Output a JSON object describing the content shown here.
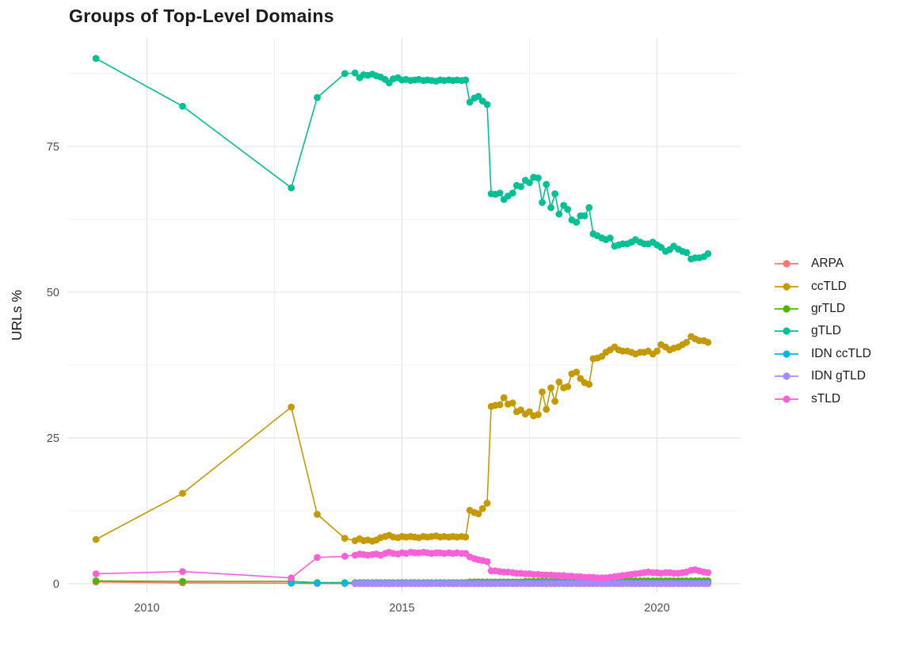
{
  "page": {
    "title": "Groups of Top-Level Domains"
  },
  "chart_data": {
    "type": "line",
    "title": "Groups of Top-Level Domains",
    "xlabel": "",
    "ylabel": "URLs %",
    "legend_position": "right",
    "grid": true,
    "xlim": [
      2008.44,
      2021.64
    ],
    "ylim": [
      -1.49,
      93.6
    ],
    "x_ticks": [
      2010,
      2015,
      2020
    ],
    "x_tick_labels": [
      "2010",
      "2015",
      "2020"
    ],
    "x_minor_ticks": [
      2012.5,
      2017.5
    ],
    "y_ticks": [
      0,
      25,
      50,
      75
    ],
    "y_tick_labels": [
      "0",
      "25",
      "50",
      "75"
    ],
    "y_minor_ticks": [
      12.5,
      37.5,
      62.5,
      87.5
    ],
    "x_dense": [
      2014.08,
      2014.17,
      2014.25,
      2014.33,
      2014.42,
      2014.5,
      2014.58,
      2014.67,
      2014.75,
      2014.83,
      2014.92,
      2015.0,
      2015.08,
      2015.17,
      2015.25,
      2015.33,
      2015.42,
      2015.5,
      2015.58,
      2015.67,
      2015.75,
      2015.83,
      2015.92,
      2016.0,
      2016.08,
      2016.17,
      2016.25,
      2016.33,
      2016.42,
      2016.5,
      2016.58,
      2016.67,
      2016.75,
      2016.83,
      2016.92,
      2017.0,
      2017.08,
      2017.17,
      2017.25,
      2017.33,
      2017.42,
      2017.5,
      2017.58,
      2017.67,
      2017.75,
      2017.83,
      2017.92,
      2018.0,
      2018.08,
      2018.17,
      2018.25,
      2018.33,
      2018.42,
      2018.5,
      2018.58,
      2018.67,
      2018.75,
      2018.83,
      2018.92,
      2019.0,
      2019.08,
      2019.17,
      2019.25,
      2019.33,
      2019.42,
      2019.5,
      2019.58,
      2019.67,
      2019.75,
      2019.83,
      2019.92,
      2020.0,
      2020.08,
      2020.17,
      2020.25,
      2020.33,
      2020.42,
      2020.5,
      2020.58,
      2020.67,
      2020.75,
      2020.83,
      2020.92,
      2021.0
    ],
    "series": [
      {
        "name": "ARPA",
        "color": "#F8766D",
        "sparse_points": [
          [
            2009.0,
            0.3
          ],
          [
            2010.7,
            0.15
          ],
          [
            2012.83,
            0.1
          ],
          [
            2013.34,
            0.05
          ],
          [
            2013.88,
            0.03
          ]
        ],
        "dense_y": 0.02
      },
      {
        "name": "ccTLD",
        "color": "#C49A00",
        "sparse_points": [
          [
            2009.0,
            7.6
          ],
          [
            2010.7,
            15.5
          ],
          [
            2012.83,
            30.3
          ],
          [
            2013.34,
            11.9
          ],
          [
            2013.88,
            7.8
          ]
        ],
        "dense_y": [
          7.4,
          7.7,
          7.4,
          7.5,
          7.3,
          7.5,
          7.9,
          8.1,
          8.3,
          8.0,
          7.9,
          8.1,
          8.0,
          8.1,
          8.0,
          7.9,
          8.1,
          8.0,
          8.1,
          8.2,
          8.0,
          8.1,
          8.0,
          8.1,
          8.0,
          8.1,
          8.0,
          12.6,
          12.2,
          12.0,
          12.9,
          13.8,
          30.4,
          30.6,
          30.7,
          31.9,
          30.8,
          31.0,
          29.5,
          29.8,
          29.1,
          29.5,
          28.8,
          29.0,
          32.9,
          29.9,
          33.6,
          31.3,
          34.6,
          33.6,
          33.8,
          36.0,
          36.3,
          35.2,
          34.5,
          34.2,
          38.6,
          38.7,
          39.0,
          39.7,
          40.1,
          40.6,
          40.1,
          39.9,
          39.9,
          39.7,
          39.4,
          39.7,
          39.7,
          39.9,
          39.4,
          39.9,
          41.0,
          40.6,
          40.1,
          40.4,
          40.6,
          41.0,
          41.4,
          42.4,
          42.0,
          41.7,
          41.7,
          41.4
        ]
      },
      {
        "name": "grTLD",
        "color": "#53B400",
        "sparse_points": [
          [
            2009.0,
            0.5
          ],
          [
            2010.7,
            0.4
          ],
          [
            2012.83,
            0.4
          ],
          [
            2013.34,
            0.2
          ],
          [
            2013.88,
            0.2
          ]
        ],
        "dense_y": [
          0.2,
          0.2,
          0.2,
          0.2,
          0.2,
          0.2,
          0.2,
          0.2,
          0.2,
          0.2,
          0.2,
          0.2,
          0.2,
          0.2,
          0.2,
          0.2,
          0.2,
          0.2,
          0.2,
          0.2,
          0.2,
          0.2,
          0.2,
          0.2,
          0.2,
          0.2,
          0.2,
          0.3,
          0.3,
          0.3,
          0.3,
          0.3,
          0.3,
          0.3,
          0.3,
          0.3,
          0.3,
          0.3,
          0.3,
          0.3,
          0.4,
          0.4,
          0.4,
          0.4,
          0.4,
          0.4,
          0.4,
          0.4,
          0.4,
          0.4,
          0.4,
          0.4,
          0.4,
          0.5,
          0.5,
          0.5,
          0.5,
          0.5,
          0.5,
          0.5,
          0.5,
          0.5,
          0.5,
          0.5,
          0.5,
          0.5,
          0.5,
          0.5,
          0.5,
          0.5,
          0.5,
          0.5,
          0.5,
          0.5,
          0.5,
          0.5,
          0.5,
          0.5,
          0.5,
          0.5,
          0.5,
          0.5,
          0.5,
          0.5
        ]
      },
      {
        "name": "gTLD",
        "color": "#00C094",
        "sparse_points": [
          [
            2009.0,
            90.1
          ],
          [
            2010.7,
            81.9
          ],
          [
            2012.83,
            67.9
          ],
          [
            2013.34,
            83.4
          ],
          [
            2013.88,
            87.5
          ]
        ],
        "dense_y": [
          87.6,
          86.8,
          87.3,
          87.2,
          87.4,
          87.1,
          86.9,
          86.5,
          85.9,
          86.6,
          86.8,
          86.4,
          86.5,
          86.3,
          86.4,
          86.5,
          86.3,
          86.4,
          86.3,
          86.2,
          86.4,
          86.3,
          86.4,
          86.3,
          86.4,
          86.3,
          86.4,
          82.6,
          83.3,
          83.6,
          82.8,
          82.2,
          66.9,
          66.8,
          67.0,
          65.9,
          66.5,
          67.0,
          68.3,
          68.1,
          69.2,
          68.8,
          69.7,
          69.6,
          65.4,
          68.5,
          64.5,
          66.9,
          63.4,
          64.9,
          64.2,
          62.4,
          62.0,
          63.1,
          63.1,
          64.5,
          60.0,
          59.7,
          59.3,
          59.0,
          59.3,
          57.9,
          58.1,
          58.3,
          58.3,
          58.6,
          59.0,
          58.6,
          58.3,
          58.3,
          58.6,
          58.1,
          57.7,
          57.0,
          57.3,
          57.9,
          57.4,
          57.0,
          56.8,
          55.7,
          55.9,
          55.9,
          56.1,
          56.6
        ]
      },
      {
        "name": "IDN ccTLD",
        "color": "#00B6EB",
        "sparse_points": [
          [
            2012.83,
            0.1
          ],
          [
            2013.34,
            0.1
          ],
          [
            2013.88,
            0.1
          ]
        ],
        "dense_y": 0.1
      },
      {
        "name": "IDN gTLD",
        "color": "#A58AFF",
        "sparse_points": [],
        "dense_y": 0.05
      },
      {
        "name": "sTLD",
        "color": "#FB61D7",
        "sparse_points": [
          [
            2009.0,
            1.7
          ],
          [
            2010.7,
            2.1
          ],
          [
            2012.83,
            1.0
          ],
          [
            2013.34,
            4.5
          ],
          [
            2013.88,
            4.7
          ]
        ],
        "dense_y": [
          4.9,
          5.1,
          5.0,
          4.9,
          5.0,
          5.1,
          4.9,
          5.2,
          5.4,
          5.2,
          5.1,
          5.3,
          5.2,
          5.4,
          5.3,
          5.3,
          5.4,
          5.3,
          5.2,
          5.3,
          5.3,
          5.2,
          5.3,
          5.2,
          5.3,
          5.2,
          5.2,
          4.6,
          4.3,
          4.1,
          4.0,
          3.8,
          2.2,
          2.2,
          2.1,
          2.0,
          2.0,
          1.9,
          1.8,
          1.8,
          1.7,
          1.7,
          1.6,
          1.6,
          1.5,
          1.5,
          1.5,
          1.4,
          1.4,
          1.4,
          1.3,
          1.3,
          1.2,
          1.2,
          1.1,
          1.1,
          1.1,
          1.0,
          1.0,
          1.0,
          1.1,
          1.2,
          1.3,
          1.4,
          1.5,
          1.6,
          1.7,
          1.8,
          1.9,
          2.0,
          1.9,
          1.9,
          1.8,
          1.9,
          1.9,
          1.8,
          1.8,
          1.9,
          2.0,
          2.3,
          2.4,
          2.2,
          2.0,
          1.9
        ]
      }
    ],
    "style": {
      "grid_major_color": "#e4e4e4",
      "grid_minor_color": "#efefef",
      "tick_label_color": "#4d4d4d",
      "axis_title_color": "#1a1a1a",
      "point_radius": 4.4,
      "line_width": 1.6
    }
  }
}
